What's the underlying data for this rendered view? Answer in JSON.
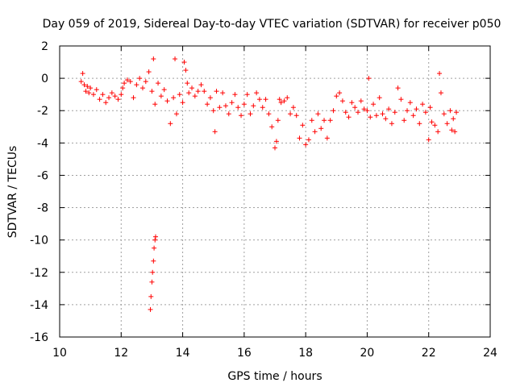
{
  "chart_data": {
    "type": "scatter",
    "title": "Day 059 of 2019, Sidereal Day-to-day VTEC variation (SDTVAR) for receiver p050",
    "xlabel": "GPS time / hours",
    "ylabel": "SDTVAR / TECUs",
    "xlim": [
      10,
      24
    ],
    "ylim": [
      -16,
      2
    ],
    "xticks": [
      10,
      12,
      14,
      16,
      18,
      20,
      22,
      24
    ],
    "yticks": [
      2,
      0,
      -2,
      -4,
      -6,
      -8,
      -10,
      -12,
      -14,
      -16
    ],
    "xtick_labels": [
      "10",
      "12",
      "14",
      "16",
      "18",
      "20",
      "22",
      "24"
    ],
    "ytick_labels": [
      "2",
      "0",
      "-2",
      "-4",
      "-6",
      "-8",
      "-10",
      "-12",
      "-14",
      "-16"
    ],
    "grid": true,
    "marker": "+",
    "color": "#ff0000",
    "series": [
      {
        "name": "SDTVAR",
        "x": [
          10.7,
          10.75,
          10.8,
          10.85,
          10.9,
          10.95,
          11.0,
          11.1,
          11.2,
          11.3,
          11.4,
          11.5,
          11.6,
          11.7,
          11.8,
          11.9,
          12.0,
          12.05,
          12.1,
          12.2,
          12.3,
          12.4,
          12.5,
          12.6,
          12.7,
          12.8,
          12.9,
          13.0,
          13.05,
          13.1,
          13.2,
          13.3,
          13.4,
          13.5,
          13.6,
          13.7,
          13.75,
          13.8,
          13.9,
          14.0,
          14.05,
          14.1,
          14.15,
          14.2,
          14.3,
          14.4,
          14.5,
          14.6,
          14.7,
          14.8,
          14.9,
          15.0,
          15.05,
          15.1,
          15.2,
          15.3,
          15.4,
          15.5,
          15.6,
          15.7,
          15.8,
          15.9,
          16.0,
          16.1,
          16.2,
          16.3,
          16.4,
          16.5,
          16.6,
          16.7,
          16.8,
          16.9,
          17.0,
          17.05,
          17.1,
          17.15,
          17.2,
          17.3,
          17.4,
          17.5,
          17.6,
          17.7,
          17.8,
          17.9,
          18.0,
          18.1,
          18.2,
          18.3,
          18.4,
          18.5,
          18.6,
          18.7,
          18.8,
          18.9,
          19.0,
          19.1,
          19.2,
          19.3,
          19.4,
          19.5,
          19.6,
          19.7,
          19.8,
          19.9,
          20.0,
          20.05,
          20.1,
          20.2,
          20.3,
          20.4,
          20.5,
          20.6,
          20.7,
          20.8,
          20.9,
          21.0,
          21.1,
          21.2,
          21.3,
          21.4,
          21.5,
          21.6,
          21.7,
          21.8,
          21.9,
          22.0,
          22.05,
          22.1,
          22.2,
          22.3,
          22.35,
          22.4,
          22.5,
          22.6,
          22.7,
          22.75,
          22.8,
          22.85,
          22.9,
          12.95,
          12.97,
          13.0,
          13.02,
          13.05,
          13.07,
          13.1,
          13.12
        ],
        "y": [
          -0.2,
          0.3,
          -0.4,
          -0.8,
          -0.5,
          -0.9,
          -0.6,
          -1.0,
          -0.7,
          -1.3,
          -1.0,
          -1.5,
          -1.2,
          -0.9,
          -1.1,
          -1.3,
          -1.0,
          -0.6,
          -0.3,
          -0.1,
          -0.2,
          -1.2,
          -0.4,
          0.0,
          -0.6,
          -0.2,
          0.4,
          -0.8,
          1.2,
          -1.6,
          -0.3,
          -1.1,
          -0.7,
          -1.4,
          -2.8,
          -1.2,
          1.2,
          -2.2,
          -1.0,
          -1.5,
          1.0,
          0.5,
          -0.3,
          -0.9,
          -0.6,
          -1.1,
          -0.8,
          -0.4,
          -0.8,
          -1.6,
          -1.2,
          -2.0,
          -3.3,
          -0.8,
          -1.8,
          -0.9,
          -1.7,
          -2.2,
          -1.5,
          -1.0,
          -1.8,
          -2.3,
          -1.6,
          -1.0,
          -2.2,
          -1.7,
          -0.9,
          -1.3,
          -1.8,
          -1.3,
          -2.2,
          -3.0,
          -4.3,
          -3.9,
          -2.6,
          -1.3,
          -1.5,
          -1.4,
          -1.2,
          -2.2,
          -1.8,
          -2.3,
          -3.7,
          -2.9,
          -4.1,
          -3.8,
          -2.6,
          -3.3,
          -2.2,
          -3.1,
          -2.6,
          -3.7,
          -2.6,
          -2.0,
          -1.1,
          -0.9,
          -1.4,
          -2.1,
          -2.4,
          -1.5,
          -1.8,
          -2.1,
          -1.4,
          -1.9,
          -2.0,
          0.0,
          -2.4,
          -1.6,
          -2.3,
          -1.2,
          -2.2,
          -2.5,
          -1.9,
          -2.8,
          -2.1,
          -0.6,
          -1.3,
          -2.6,
          -2.0,
          -1.5,
          -2.3,
          -1.9,
          -2.8,
          -1.6,
          -2.1,
          -3.8,
          -1.8,
          -2.7,
          -2.9,
          -3.3,
          0.3,
          -0.9,
          -2.2,
          -2.8,
          -2.0,
          -3.2,
          -2.5,
          -3.3,
          -2.1,
          -14.3,
          -13.5,
          -12.6,
          -12.0,
          -11.3,
          -10.5,
          -10.0,
          -9.8
        ]
      }
    ]
  }
}
